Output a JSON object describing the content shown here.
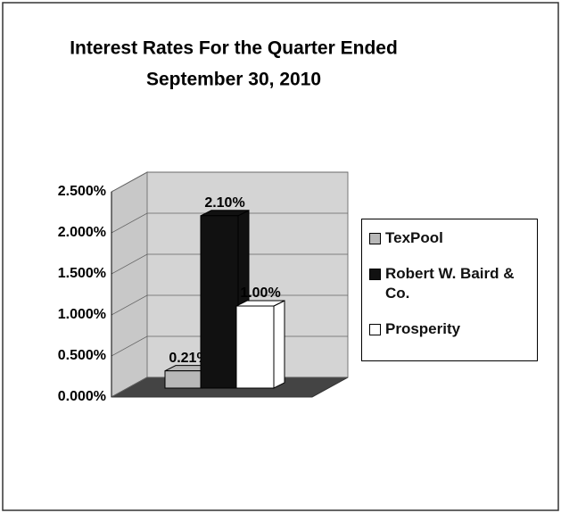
{
  "chart_data": {
    "type": "bar3d",
    "title": "Interest Rates For the Quarter Ended",
    "subtitle": "September 30, 2010",
    "series": [
      {
        "name": "TexPool",
        "color": "#b8b8b8",
        "values": [
          0.21
        ],
        "value_labels": [
          "0.21%"
        ]
      },
      {
        "name": "Robert W. Baird & Co.",
        "color": "#111111",
        "values": [
          2.1
        ],
        "value_labels": [
          "2.10%"
        ]
      },
      {
        "name": "Prosperity",
        "color": "#ffffff",
        "values": [
          1.0
        ],
        "value_labels": [
          "1.00%"
        ]
      }
    ],
    "ylim": [
      0,
      2.5
    ],
    "yticks": [
      {
        "value": 0,
        "label": "0.000%"
      },
      {
        "value": 0.5,
        "label": "0.500%"
      },
      {
        "value": 1,
        "label": "1.000%"
      },
      {
        "value": 1.5,
        "label": "1.500%"
      },
      {
        "value": 2,
        "label": "2.000%"
      },
      {
        "value": 2.5,
        "label": "2.500%"
      }
    ],
    "grid": true,
    "legend": "right"
  }
}
